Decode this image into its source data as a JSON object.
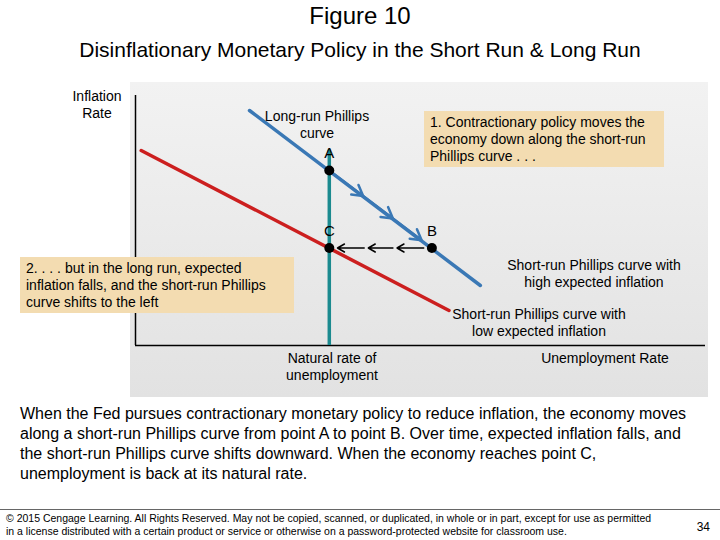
{
  "chart_data": {
    "type": "line",
    "title": "Figure 10",
    "subtitle": "Disinflationary Monetary Policy in the Short Run & Long Run",
    "x_label": "Unemployment Rate",
    "y_label": "Inflation Rate",
    "xlim": [
      0,
      10
    ],
    "ylim": [
      0,
      10
    ],
    "xticks": [],
    "yticks": [],
    "tick_labels": false,
    "series": [
      {
        "name": "Long-run Phillips curve",
        "color": "#1b8a8f",
        "x": [
          3.4,
          3.4
        ],
        "values": [
          0,
          7.8
        ]
      },
      {
        "name": "Short-run Phillips curve with high expected inflation",
        "color": "#3a78b5",
        "x": [
          2.0,
          6.05
        ],
        "values": [
          9.4,
          2.4
        ]
      },
      {
        "name": "Short-run Phillips curve with low expected inflation",
        "color": "#cc1f1f",
        "x": [
          0.1,
          5.5
        ],
        "values": [
          7.8,
          1.4
        ]
      }
    ],
    "points": [
      {
        "label": "A",
        "x": 3.4,
        "y": 7.0
      },
      {
        "label": "B",
        "x": 5.2,
        "y": 3.9
      },
      {
        "label": "C",
        "x": 3.4,
        "y": 3.9
      }
    ],
    "natural_rate_label": "Natural rate of unemployment",
    "annotations": [
      "1. Contractionary policy moves the economy down along the short-run Phillips curve . . .",
      "2. . . . but in the long run, expected inflation falls, and the short-run Phillips curve shifts to the left"
    ],
    "caption": "When the Fed pursues contractionary monetary policy to reduce inflation, the economy moves along a short-run Phillips curve from point A to point B. Over time, expected inflation falls, and the short-run Phillips curve shifts downward. When the economy reaches point C, unemployment is back at its natural rate.",
    "footer": "© 2015 Cengage Learning. All Rights Reserved. May not be copied, scanned, or duplicated, in whole or in part, except for use as permitted in a license distributed with a certain product or service or otherwise on a password-protected website for classroom use.",
    "page_number": 34
  }
}
